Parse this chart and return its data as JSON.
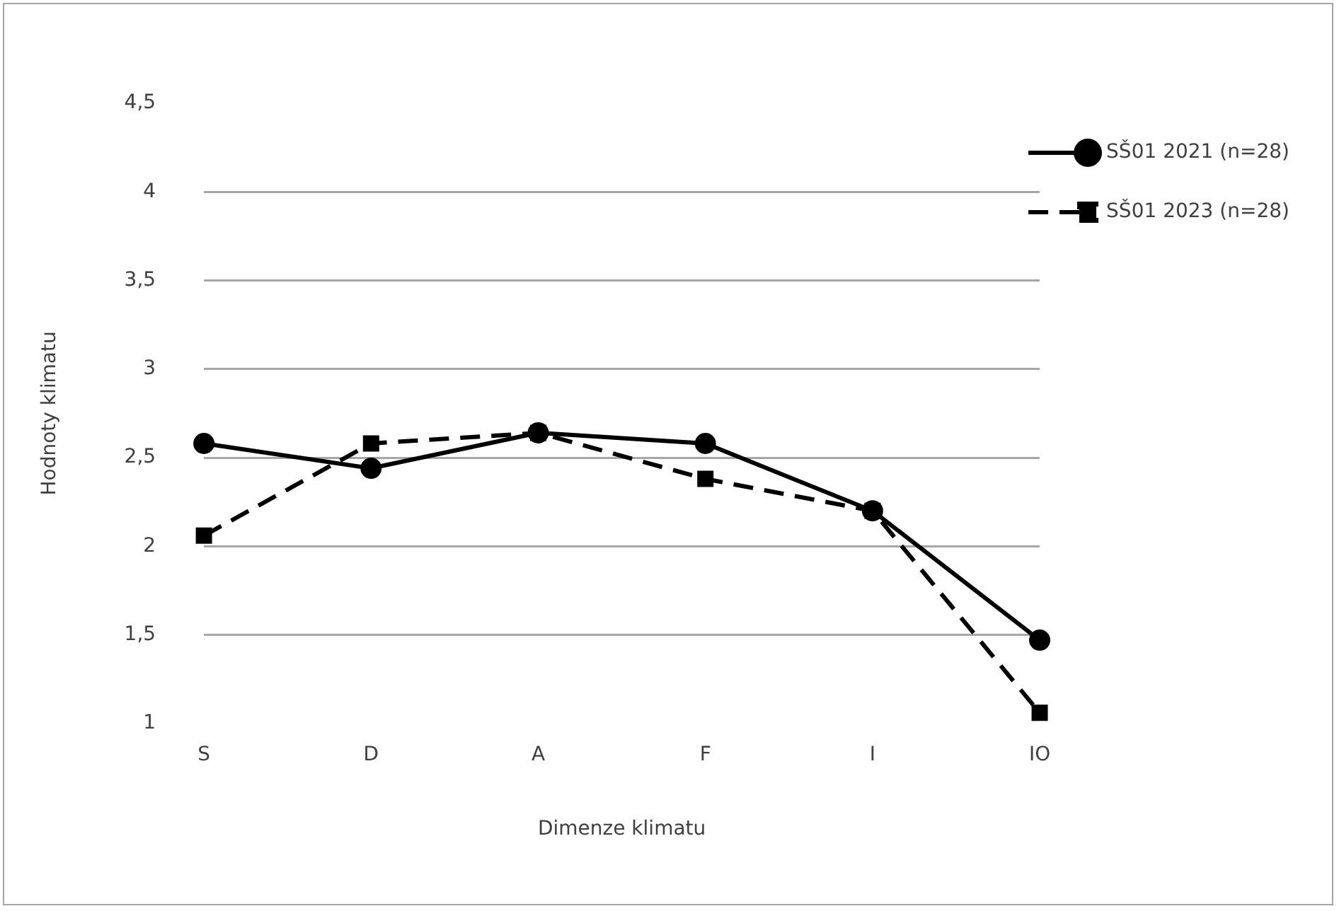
{
  "chart_data": {
    "type": "line",
    "xlabel": "Dimenze klimatu",
    "ylabel": "Hodnoty klimatu",
    "categories": [
      "S",
      "D",
      "A",
      "F",
      "I",
      "IO"
    ],
    "series": [
      {
        "name": "SŠ01 2021 (n=28)",
        "color": "#000000",
        "marker": "circle",
        "line_style": "solid",
        "values": [
          2.58,
          2.44,
          2.64,
          2.58,
          2.2,
          1.47
        ]
      },
      {
        "name": "SŠ01 2023 (n=28)",
        "color": "#000000",
        "marker": "square",
        "line_style": "dashed",
        "values": [
          2.06,
          2.58,
          2.64,
          2.38,
          2.2,
          1.06
        ]
      }
    ],
    "ylim": [
      1,
      4.5
    ],
    "yticks": [
      1,
      {
        "value": 1.5,
        "label": "1,5"
      },
      2,
      {
        "value": 2.5,
        "label": "2,5"
      },
      3,
      {
        "value": 3.5,
        "label": "3,5"
      },
      4,
      {
        "value": 4.5,
        "label": "4,5"
      }
    ],
    "grid": "y",
    "legend": "top right"
  }
}
